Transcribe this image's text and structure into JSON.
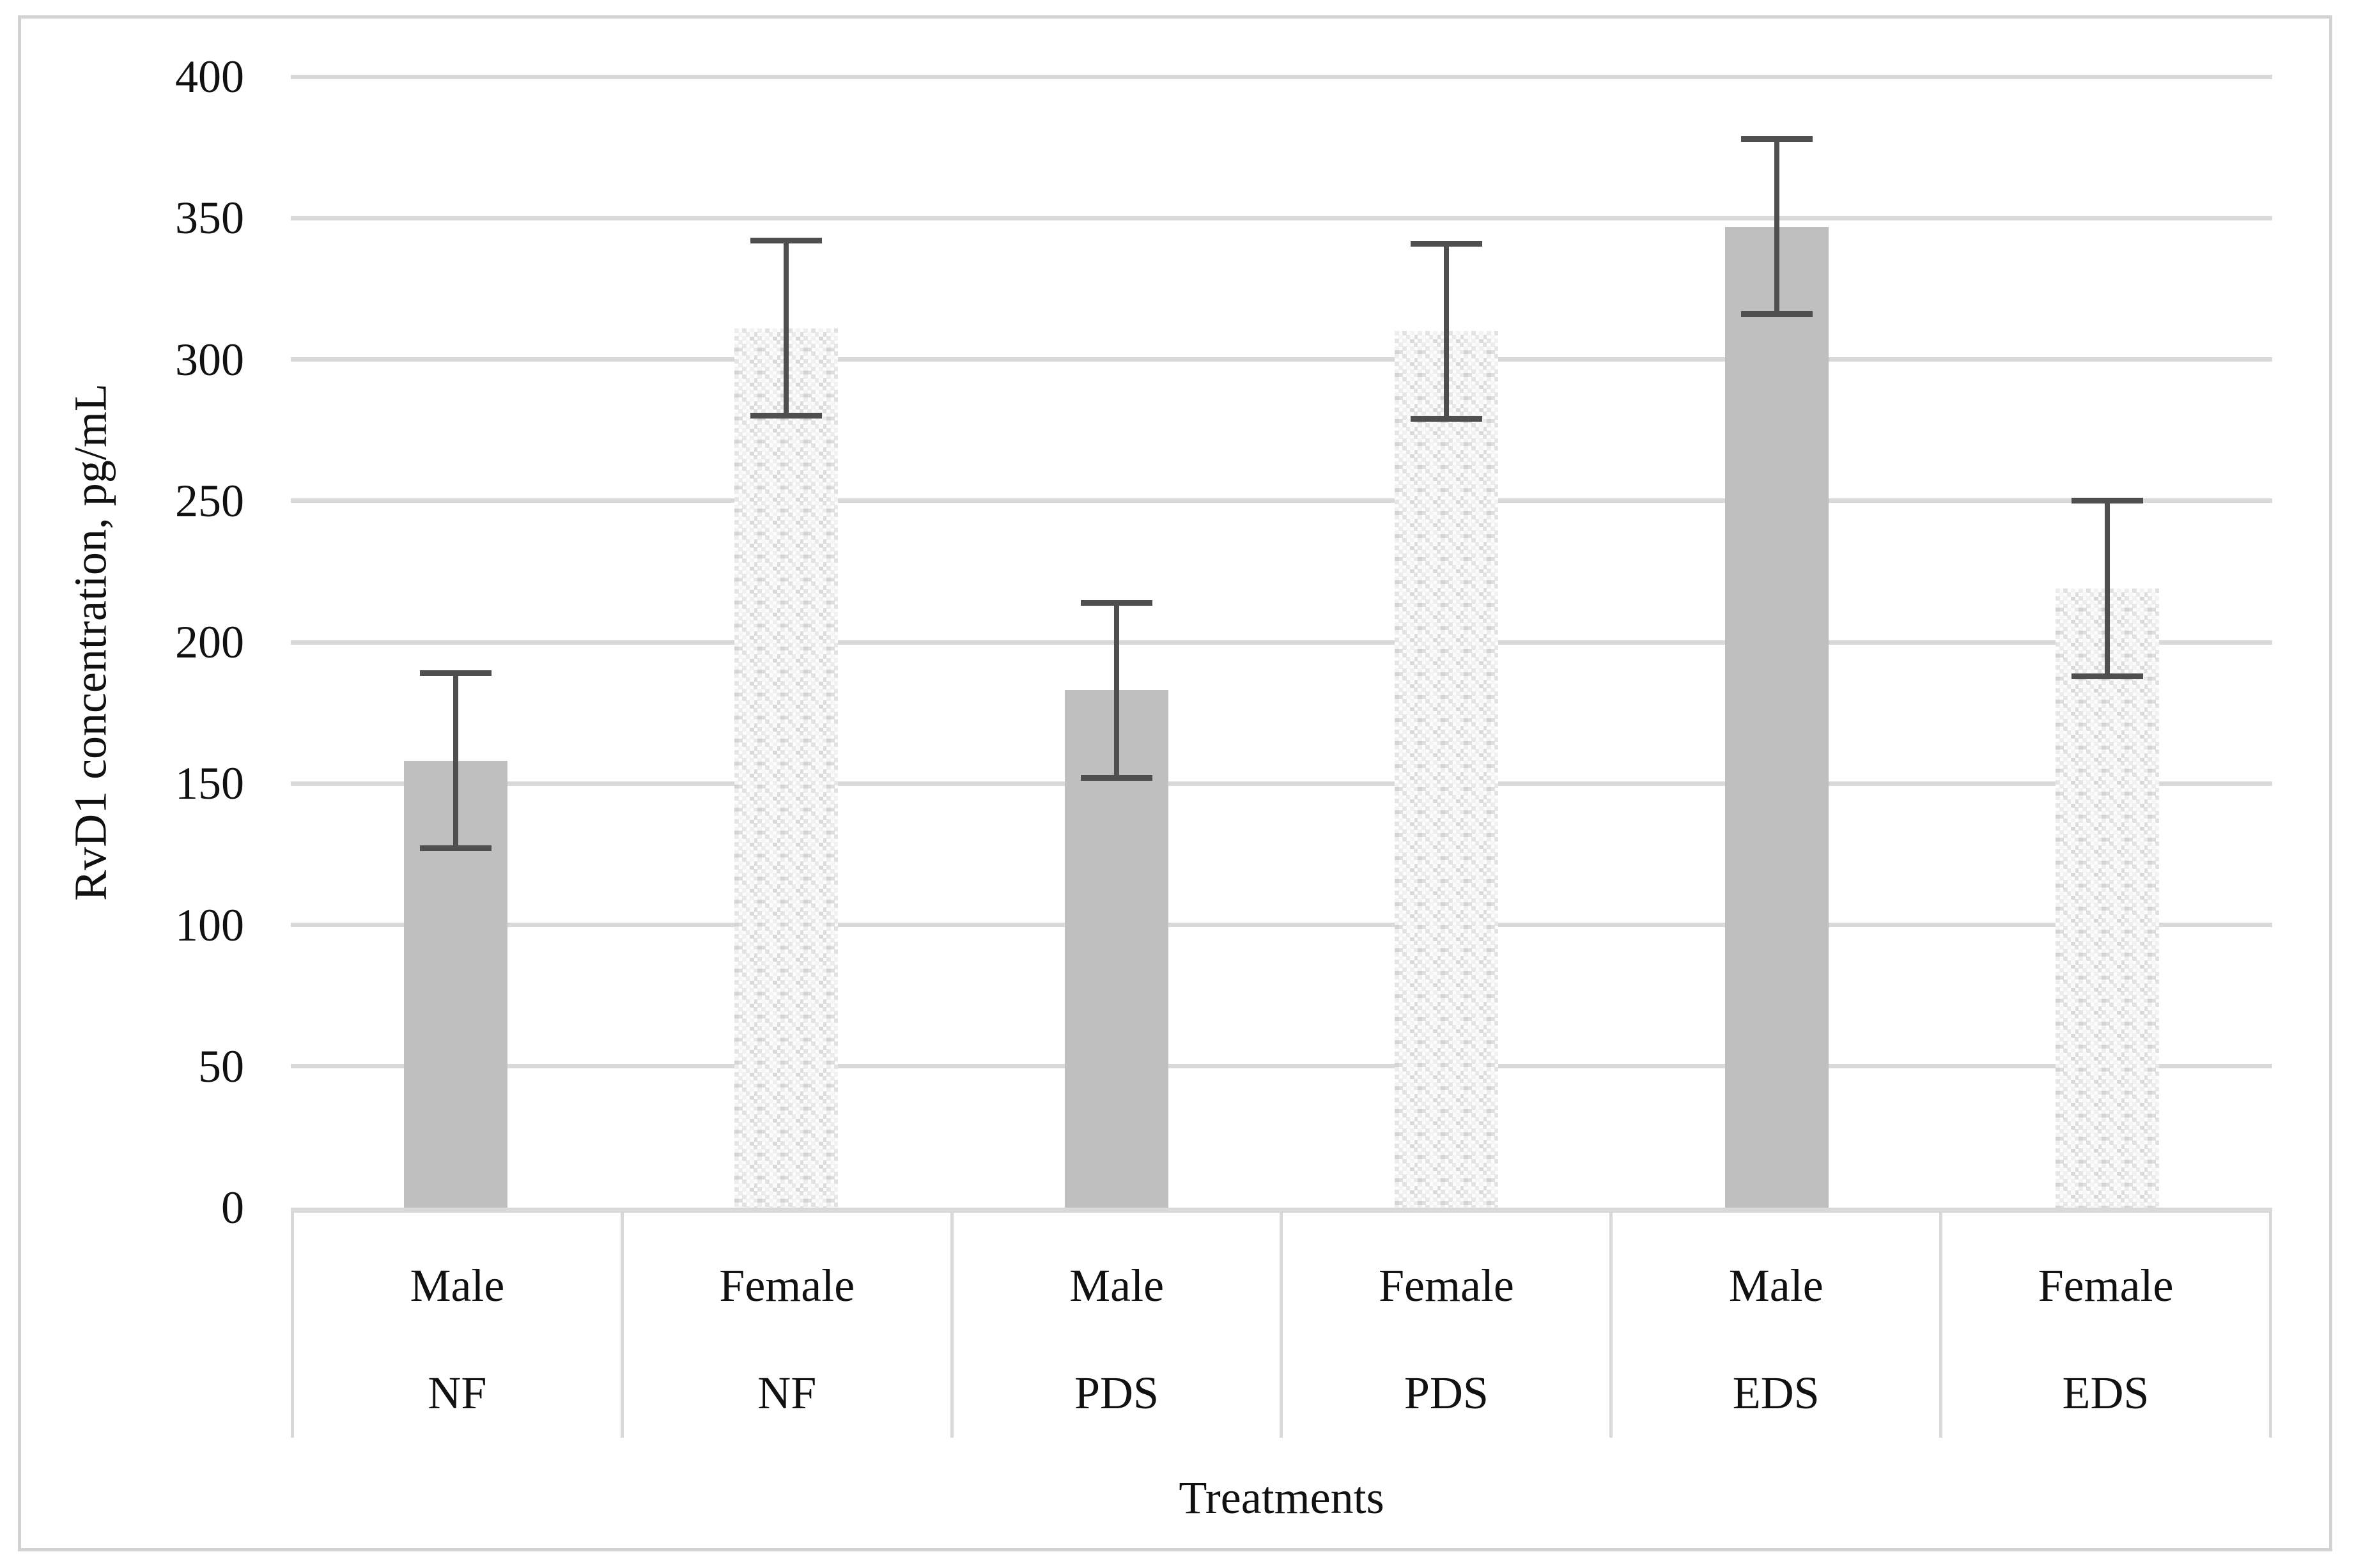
{
  "figure": {
    "y_axis_title": "RvD1 concentration, pg/mL",
    "x_axis_title": "Treatments"
  },
  "chart_data": {
    "type": "bar",
    "title": "",
    "xlabel": "Treatments",
    "ylabel": "RvD1 concentration, pg/mL",
    "ylim": [
      0,
      400
    ],
    "yticks": [
      0,
      50,
      100,
      150,
      200,
      250,
      300,
      350,
      400
    ],
    "grid": true,
    "legend_position": "none",
    "categories": [
      {
        "sex": "Male",
        "treatment": "NF"
      },
      {
        "sex": "Female",
        "treatment": "NF"
      },
      {
        "sex": "Male",
        "treatment": "PDS"
      },
      {
        "sex": "Female",
        "treatment": "PDS"
      },
      {
        "sex": "Male",
        "treatment": "EDS"
      },
      {
        "sex": "Female",
        "treatment": "EDS"
      }
    ],
    "series": [
      {
        "name": "RvD1 concentration",
        "values": [
          158,
          311,
          183,
          310,
          347,
          219
        ],
        "error_plus": [
          32,
          32,
          32,
          32,
          32,
          32
        ],
        "error_minus": [
          32,
          32,
          32,
          32,
          32,
          32
        ],
        "bar_fill_styles": [
          "solid",
          "speckled",
          "solid",
          "speckled",
          "solid",
          "speckled"
        ]
      }
    ],
    "colors": {
      "solid_bar": "#bfbfbf",
      "speckled_bar_base": "#fdfdfd",
      "error_bar": "#4f4f4f",
      "gridline": "#d9d9d9",
      "frame_border": "#d2d2d2",
      "text": "#111111"
    }
  }
}
